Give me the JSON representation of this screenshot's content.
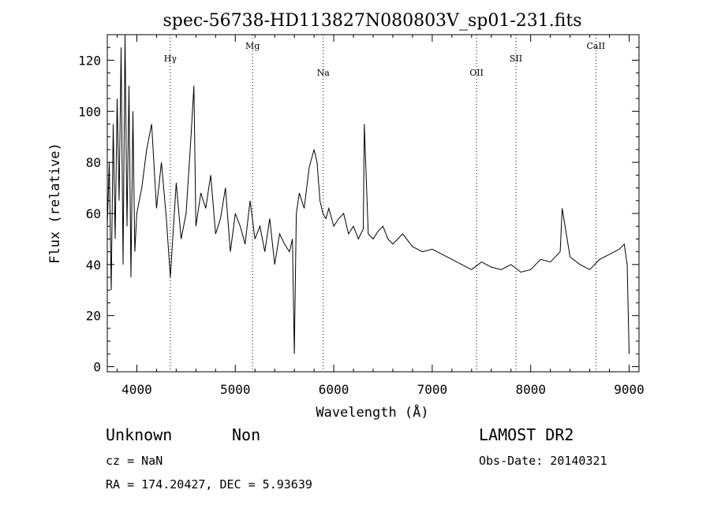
{
  "chart_data": {
    "type": "line",
    "title": "spec-56738-HD113827N080803V_sp01-231.fits",
    "xlabel": "Wavelength (Å)",
    "ylabel": "Flux (relative)",
    "xlim": [
      3700,
      9100
    ],
    "ylim": [
      -2,
      130
    ],
    "xticks": [
      4000,
      5000,
      6000,
      7000,
      8000,
      9000
    ],
    "yticks": [
      0,
      20,
      40,
      60,
      80,
      100,
      120
    ],
    "lines": [
      {
        "label": "Hγ",
        "x": 4340
      },
      {
        "label": "Mg",
        "x": 5175
      },
      {
        "label": "Na",
        "x": 5893
      },
      {
        "label": "OII",
        "x": 7450
      },
      {
        "label": "SII",
        "x": 7850
      },
      {
        "label": "CaII",
        "x": 8662
      }
    ],
    "series": [
      {
        "x": [
          3700,
          3720,
          3740,
          3760,
          3780,
          3800,
          3820,
          3840,
          3860,
          3880,
          3900,
          3920,
          3940,
          3960,
          3980,
          4000,
          4050,
          4100,
          4150,
          4200,
          4250,
          4300,
          4340,
          4400,
          4450,
          4500,
          4550,
          4580,
          4600,
          4650,
          4700,
          4750,
          4800,
          4850,
          4900,
          4950,
          5000,
          5050,
          5100,
          5150,
          5200,
          5250,
          5300,
          5350,
          5400,
          5450,
          5500,
          5550,
          5580,
          5600,
          5620,
          5650,
          5700,
          5750,
          5800,
          5830,
          5860,
          5890,
          5920,
          5950,
          6000,
          6050,
          6100,
          6150,
          6200,
          6250,
          6300,
          6310,
          6350,
          6400,
          6450,
          6500,
          6550,
          6600,
          6700,
          6800,
          6900,
          7000,
          7100,
          7200,
          7300,
          7400,
          7500,
          7600,
          7700,
          7800,
          7900,
          8000,
          8100,
          8200,
          8300,
          8320,
          8400,
          8500,
          8600,
          8700,
          8800,
          8900,
          8950,
          8980,
          9000
        ],
        "y": [
          55,
          80,
          30,
          95,
          50,
          105,
          65,
          125,
          40,
          130,
          55,
          110,
          35,
          100,
          45,
          60,
          70,
          85,
          95,
          62,
          80,
          58,
          35,
          72,
          50,
          60,
          90,
          110,
          55,
          68,
          62,
          75,
          52,
          58,
          70,
          45,
          60,
          55,
          48,
          65,
          50,
          55,
          45,
          58,
          40,
          52,
          48,
          45,
          50,
          5,
          60,
          68,
          62,
          78,
          85,
          80,
          65,
          60,
          58,
          62,
          55,
          58,
          60,
          52,
          55,
          50,
          54,
          95,
          52,
          50,
          53,
          55,
          50,
          48,
          52,
          47,
          45,
          46,
          44,
          42,
          40,
          38,
          41,
          39,
          38,
          40,
          37,
          38,
          42,
          41,
          45,
          62,
          43,
          40,
          38,
          42,
          44,
          46,
          48,
          40,
          5
        ]
      }
    ]
  },
  "footer": {
    "class_label": "Unknown",
    "subclass_label": "Non",
    "survey": "LAMOST DR2",
    "cz": "cz = NaN",
    "obs_date": "Obs-Date: 20140321",
    "coords": "RA = 174.20427, DEC =   5.93639"
  }
}
